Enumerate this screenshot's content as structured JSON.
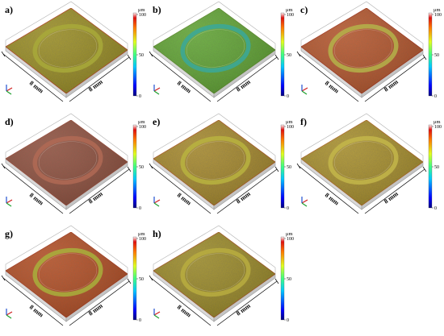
{
  "figure": {
    "scale_unit": "μm",
    "tick_labels": [
      "100",
      "50",
      "0"
    ],
    "panels": [
      {
        "letter": "a)",
        "x_dim": "8 mm",
        "y_dim": "8 mm",
        "surface": "#9a8d24",
        "surface_edge": "#b3461e",
        "ring": "#a8a93a"
      },
      {
        "letter": "b)",
        "x_dim": "8 mm",
        "y_dim": "8 mm",
        "surface": "#5fa532",
        "surface_edge": "#5b8f2a",
        "ring": "#3aa89a"
      },
      {
        "letter": "c)",
        "x_dim": "8 mm",
        "y_dim": "8 mm",
        "surface": "#b5532a",
        "surface_edge": "#a8351d",
        "ring": "#b4b34a"
      },
      {
        "letter": "d)",
        "x_dim": "8 mm",
        "y_dim": "8 mm",
        "surface": "#8f4d3d",
        "surface_edge": "#9a4a3a",
        "ring": "#b06a55"
      },
      {
        "letter": "e)",
        "x_dim": "8 mm",
        "y_dim": "8 mm",
        "surface": "#a6882a",
        "surface_edge": "#ad5c22",
        "ring": "#b8b340"
      },
      {
        "letter": "f)",
        "x_dim": "8 mm",
        "y_dim": "8 mm",
        "surface": "#a88f2b",
        "surface_edge": "#b06a24",
        "ring": "#c3b64a"
      },
      {
        "letter": "g)",
        "x_dim": "8 mm",
        "y_dim": "8 mm",
        "surface": "#b34b22",
        "surface_edge": "#a9381c",
        "ring": "#a8b03c"
      },
      {
        "letter": "h)",
        "x_dim": "8 mm",
        "y_dim": "8 mm",
        "surface": "#9b8a28",
        "surface_edge": "#a55a22",
        "ring": "#b9ad40"
      }
    ]
  }
}
